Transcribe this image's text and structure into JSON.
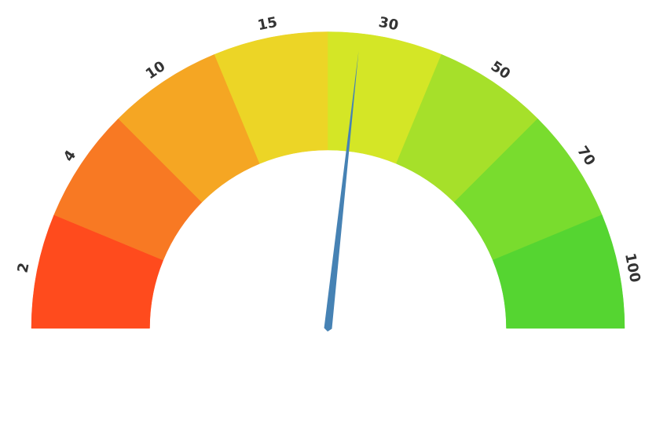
{
  "chart_data": {
    "type": "gauge",
    "title": "",
    "range": [
      0,
      100
    ],
    "tick_labels": [
      "2",
      "4",
      "10",
      "15",
      "30",
      "50",
      "70",
      "100"
    ],
    "segments": [
      {
        "label": "2",
        "color": "#ff4b1d"
      },
      {
        "label": "4",
        "color": "#f87923"
      },
      {
        "label": "10",
        "color": "#f5a623"
      },
      {
        "label": "15",
        "color": "#ecd526"
      },
      {
        "label": "30",
        "color": "#d4e626"
      },
      {
        "label": "50",
        "color": "#a6e02a"
      },
      {
        "label": "70",
        "color": "#79dc2e"
      },
      {
        "label": "100",
        "color": "#55d531"
      }
    ],
    "needle": {
      "value": 53.5,
      "color": "#4682b4"
    }
  }
}
